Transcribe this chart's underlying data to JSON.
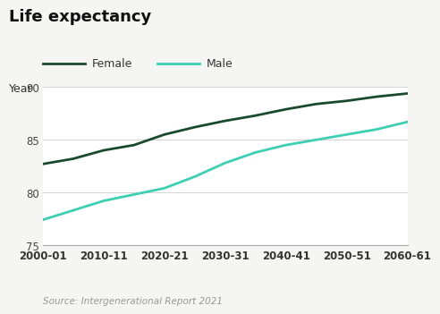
{
  "title": "Life expectancy",
  "ylabel": "Year",
  "source": "Source: Intergenerational Report 2021",
  "x_labels": [
    "2000-01",
    "2010-11",
    "2020-21",
    "2030-31",
    "2040-41",
    "2050-51",
    "2060-61"
  ],
  "x_values": [
    0,
    10,
    20,
    30,
    40,
    50,
    60
  ],
  "female_data": {
    "label": "Female",
    "color": "#1a4a2e",
    "x": [
      0,
      5,
      10,
      15,
      20,
      25,
      30,
      35,
      40,
      45,
      50,
      55,
      60
    ],
    "y": [
      82.7,
      83.2,
      84.0,
      84.5,
      85.5,
      86.2,
      86.8,
      87.3,
      87.9,
      88.4,
      88.7,
      89.1,
      89.4
    ]
  },
  "male_data": {
    "label": "Male",
    "color": "#3ecfb2",
    "x": [
      0,
      5,
      10,
      15,
      20,
      25,
      30,
      35,
      40,
      45,
      50,
      55,
      60
    ],
    "y": [
      77.4,
      78.3,
      79.2,
      79.8,
      80.4,
      81.5,
      82.8,
      83.8,
      84.5,
      85.0,
      85.5,
      86.0,
      86.7
    ]
  },
  "ylim": [
    75,
    90
  ],
  "yticks": [
    75,
    80,
    85,
    90
  ],
  "background_color": "#f5f5f3",
  "plot_bg_color": "#ffffff",
  "title_fontsize": 13,
  "label_fontsize": 9,
  "tick_fontsize": 8.5,
  "source_fontsize": 7.5,
  "linewidth": 2.0
}
